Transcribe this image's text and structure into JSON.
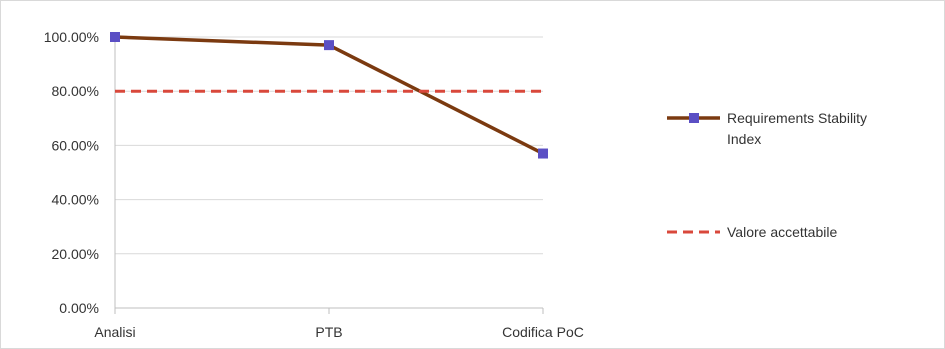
{
  "chart_data": {
    "type": "line",
    "title": "",
    "xlabel": "",
    "ylabel": "",
    "categories": [
      "Analisi",
      "PTB",
      "Codifica PoC"
    ],
    "ylim": [
      0,
      1
    ],
    "yticks": [
      "0.00%",
      "20.00%",
      "40.00%",
      "60.00%",
      "80.00%",
      "100.00%"
    ],
    "grid": true,
    "legend_position": "right",
    "series": [
      {
        "name": "Requirements Stability Index",
        "values": [
          1.0,
          0.97,
          0.57
        ],
        "color": "#7b3a10",
        "marker_color": "#5b4fc4",
        "style": "solid"
      },
      {
        "name": "Valore accettabile",
        "values": [
          0.8,
          0.8,
          0.8
        ],
        "color": "#d9483b",
        "style": "dashed"
      }
    ],
    "legend": {
      "line1": [
        "Requirements Stability",
        "Index"
      ],
      "line2": [
        "Valore accettabile"
      ]
    }
  }
}
